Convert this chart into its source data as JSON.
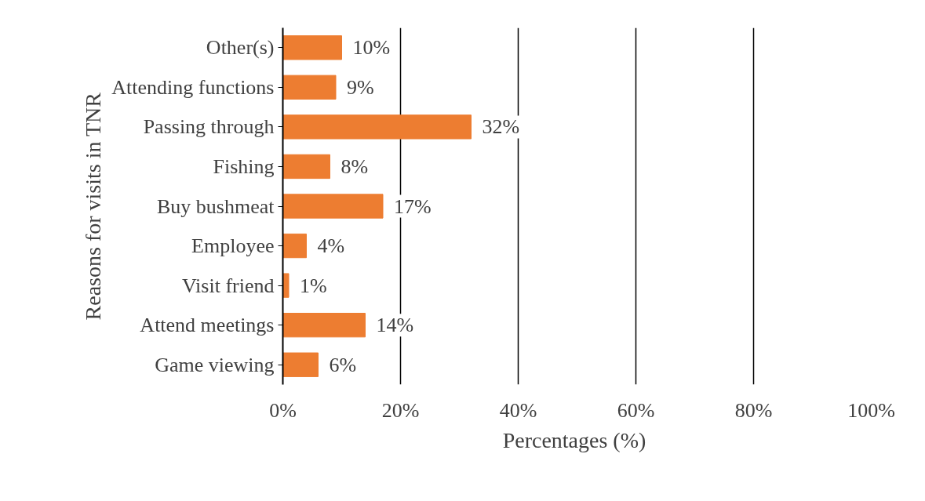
{
  "chart_data": {
    "type": "bar",
    "orientation": "horizontal",
    "xlabel": "Percentages  (%)",
    "ylabel": "Reasons for visits in TNR",
    "categories": [
      "Other(s)",
      "Attending functions",
      "Passing through",
      "Fishing",
      "Buy bushmeat",
      "Employee",
      "Visit friend",
      "Attend meetings",
      "Game viewing"
    ],
    "values": [
      10,
      9,
      32,
      8,
      17,
      4,
      1,
      14,
      6
    ],
    "value_labels": [
      "10%",
      "9%",
      "32%",
      "8%",
      "17%",
      "4%",
      "1%",
      "14%",
      "6%"
    ],
    "color": "#ed7d31",
    "xlim": [
      0,
      100
    ],
    "xticks": [
      {
        "value": 0,
        "label": "0%"
      },
      {
        "value": 20,
        "label": "20%"
      },
      {
        "value": 40,
        "label": "40%"
      },
      {
        "value": 60,
        "label": "60%"
      },
      {
        "value": 80,
        "label": "80%"
      },
      {
        "value": 100,
        "label": "100%"
      }
    ],
    "grid": "x"
  }
}
